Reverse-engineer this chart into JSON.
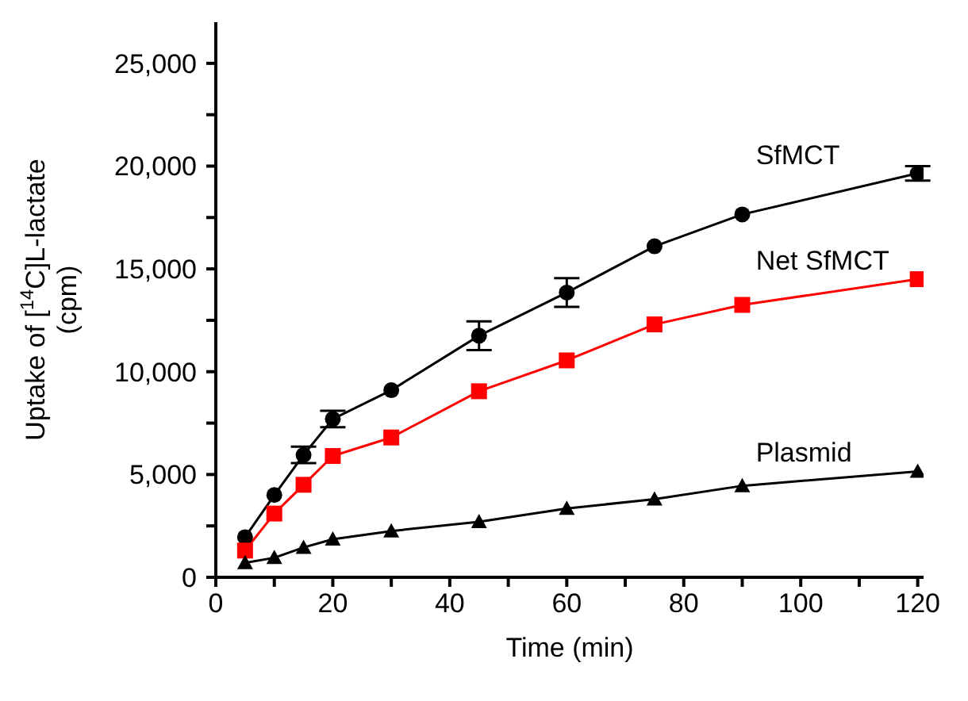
{
  "chart_data": {
    "type": "line",
    "xlabel": "Time (min)",
    "ylabel": "Uptake of [$^{14}$C]L-lactate\n(cpm)",
    "x": [
      5,
      10,
      15,
      20,
      30,
      45,
      60,
      75,
      90,
      120
    ],
    "series": [
      {
        "name": "SfMCT",
        "color": "#000000",
        "marker": "circle",
        "values": [
          1950,
          4000,
          5950,
          7700,
          9100,
          11750,
          13850,
          16100,
          17650,
          19650
        ],
        "errors": [
          null,
          null,
          400,
          400,
          null,
          700,
          700,
          null,
          null,
          350
        ]
      },
      {
        "name": "Net SfMCT",
        "color": "#ff0000",
        "marker": "square",
        "values": [
          1300,
          3100,
          4500,
          5900,
          6800,
          9050,
          10550,
          12300,
          13250,
          14500
        ]
      },
      {
        "name": "Plasmid",
        "color": "#000000",
        "marker": "triangle",
        "values": [
          700,
          950,
          1450,
          1850,
          2250,
          2700,
          3350,
          3800,
          4450,
          5150
        ]
      }
    ],
    "xlim": [
      0,
      121
    ],
    "xticks": [
      0,
      {
        "value": 10,
        "label": null
      },
      20,
      {
        "value": 30,
        "label": null
      },
      40,
      {
        "value": 50,
        "label": null
      },
      60,
      {
        "value": 70,
        "label": null
      },
      80,
      {
        "value": 90,
        "label": null
      },
      100,
      {
        "value": 110,
        "label": null
      },
      120
    ],
    "ylim": [
      0,
      27000
    ],
    "yticks": [
      0,
      {
        "value": 2500,
        "label": null
      },
      {
        "value": 5000,
        "label": "5,000"
      },
      {
        "value": 7500,
        "label": null
      },
      {
        "value": 10000,
        "label": "10,000"
      },
      {
        "value": 12500,
        "label": null
      },
      {
        "value": 15000,
        "label": "15,000"
      },
      {
        "value": 17500,
        "label": null
      },
      {
        "value": 20000,
        "label": "20,000"
      },
      {
        "value": 22500,
        "label": null
      },
      {
        "value": 25000,
        "label": "25,000"
      }
    ],
    "grid": false,
    "legend": false,
    "line_style": "solid"
  }
}
